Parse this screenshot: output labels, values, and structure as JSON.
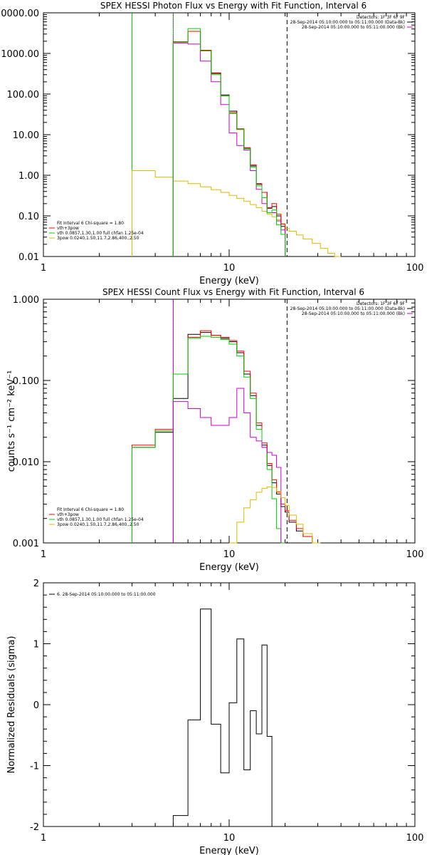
{
  "figure": {
    "colors": {
      "background": "#ffffff",
      "axis": "#000000",
      "total": "#ff0000",
      "data": "#000000",
      "bk": "#cc00cc",
      "vth": "#00cc00",
      "powerlaw": "#ddbb00"
    }
  },
  "chart_data": [
    {
      "id": "photon",
      "type": "line",
      "title": "SPEX HESSI Photon Flux vs Energy with Fit Function, Interval 6",
      "xlabel": "Energy (keV)",
      "ylabel": "",
      "xscale": "log",
      "yscale": "log",
      "xlim": [
        1,
        100
      ],
      "ylim": [
        0.01,
        10000
      ],
      "xticks": [
        {
          "v": 1,
          "label": "1"
        },
        {
          "v": 10,
          "label": "10"
        },
        {
          "v": 100,
          "label": "100"
        }
      ],
      "yticks": [
        {
          "v": 0.01,
          "label": "0.01"
        },
        {
          "v": 0.1,
          "label": "0.10"
        },
        {
          "v": 1,
          "label": "1.00"
        },
        {
          "v": 10,
          "label": "10.00"
        },
        {
          "v": 100,
          "label": "100.00"
        },
        {
          "v": 1000,
          "label": "1000.00"
        },
        {
          "v": 10000,
          "label": "10000.00"
        }
      ],
      "vlines": [
        {
          "x": 3,
          "style": "solid",
          "color": "#00cc00"
        },
        {
          "x": 5,
          "style": "solid",
          "color": "#00cc00"
        },
        {
          "x": 5,
          "style": "dotted",
          "color": "#cc00cc"
        },
        {
          "x": 20.5,
          "style": "dashed",
          "color": "#000000"
        }
      ],
      "header": [
        "Detectors: 1F 3F 6F 9F",
        "28-Sep-2014 05:10:00.000 to 05:11:00.000 (Data-Bk)",
        "28-Sep-2014 05:10:00.000 to 05:11:00.000 (Bk)"
      ],
      "header_colors": [
        "#000000",
        "#000000",
        "#cc00cc"
      ],
      "legend": [
        {
          "text": "Fit Interval 6   Chi-square = 1.80",
          "color": ""
        },
        {
          "text": "vth+3pow",
          "color": "#ff0000"
        },
        {
          "text": "vth 0.0857,1.30,1.00  full chfan 1.25e-04",
          "color": "#00cc00"
        },
        {
          "text": "3pow 0.0240,1.50,11.7,2.86,400.,2.50",
          "color": "#ddbb00"
        }
      ],
      "edges": [
        5,
        6,
        7,
        8,
        9,
        10,
        11,
        12,
        13,
        14,
        15,
        16,
        17,
        18,
        19,
        20
      ],
      "series": [
        {
          "key": "data",
          "color": "#000000",
          "values": [
            1950,
            3500,
            1200,
            330,
            95,
            38,
            13.5,
            4.6,
            1.7,
            0.6,
            0.38,
            0.155,
            0.17,
            0.1,
            0.055
          ]
        },
        {
          "key": "total",
          "color": "#ff0000",
          "values": [
            1950,
            3500,
            1200,
            320,
            90,
            35,
            14,
            4.8,
            1.8,
            0.62,
            0.38,
            0.16,
            0.2,
            0.11,
            0.062
          ]
        },
        {
          "key": "bk",
          "color": "#cc00cc",
          "values": [
            1800,
            1700,
            650,
            200,
            55,
            11,
            5.4,
            4.2,
            1.3,
            0.45,
            0.2,
            0.12,
            0.12,
            0.075,
            0.045
          ]
        },
        {
          "key": "vth",
          "color": "#00cc00",
          "values": [
            1900,
            4100,
            1150,
            300,
            90,
            33,
            13.5,
            4.5,
            1.6,
            0.55,
            0.28,
            0.12,
            0.14,
            0.06,
            0.035
          ]
        }
      ],
      "pow_edges": [
        3,
        4,
        5,
        6,
        7,
        8,
        9,
        10,
        11,
        12,
        13,
        14,
        15,
        16,
        17,
        18,
        19,
        20,
        21,
        23,
        25,
        28,
        31,
        34,
        37,
        40
      ],
      "pow_values": [
        1.3,
        0.9,
        0.72,
        0.62,
        0.52,
        0.44,
        0.38,
        0.32,
        0.27,
        0.23,
        0.19,
        0.16,
        0.13,
        0.11,
        0.095,
        0.08,
        0.065,
        0.05,
        0.042,
        0.034,
        0.027,
        0.021,
        0.016,
        0.012,
        0.01
      ]
    },
    {
      "id": "count",
      "type": "line",
      "title": "SPEX HESSI Count Flux vs Energy with Fit Function, Interval 6",
      "xlabel": "Energy (keV)",
      "ylabel": "counts s⁻¹ cm⁻² keV⁻¹",
      "xscale": "log",
      "yscale": "log",
      "xlim": [
        1,
        100
      ],
      "ylim": [
        0.001,
        1
      ],
      "xticks": [
        {
          "v": 1,
          "label": "1"
        },
        {
          "v": 10,
          "label": "10"
        },
        {
          "v": 100,
          "label": "100"
        }
      ],
      "yticks": [
        {
          "v": 0.001,
          "label": "0.001"
        },
        {
          "v": 0.01,
          "label": "0.010"
        },
        {
          "v": 0.1,
          "label": "0.100"
        },
        {
          "v": 1,
          "label": "1.000"
        }
      ],
      "vlines": [
        {
          "x": 5,
          "style": "dotted",
          "color": "#000000"
        },
        {
          "x": 5,
          "style": "solid",
          "color": "#cc00cc"
        },
        {
          "x": 20.5,
          "style": "dashed",
          "color": "#000000"
        }
      ],
      "header": [
        "Detectors: 1F 3F 6F 9F",
        "28-Sep-2014 05:10:00.000 to 05:11:00.000 (Data-Bk)",
        "28-Sep-2014 05:10:00.000 to 05:11:00.000 (Bk)"
      ],
      "header_colors": [
        "#000000",
        "#000000",
        "#cc00cc"
      ],
      "legend": [
        {
          "text": "Fit Interval 6   Chi-square = 1.80",
          "color": ""
        },
        {
          "text": "vth+3pow",
          "color": "#ff0000"
        },
        {
          "text": "vth 0.0857,1.30,1.00  full chfan 1.25e-04",
          "color": "#00cc00"
        },
        {
          "text": "3pow 0.0240,1.50,11.7,2.86,400.,2.50",
          "color": "#ddbb00"
        }
      ],
      "edges": [
        3,
        4,
        5,
        6,
        7,
        8,
        9,
        10,
        11,
        12,
        13,
        14,
        15,
        16,
        17,
        18,
        19,
        20,
        21,
        23,
        25,
        28,
        31,
        34,
        37,
        40
      ],
      "series": [
        {
          "key": "data",
          "color": "#000000",
          "values": [
            0.015,
            0.023,
            0.06,
            0.37,
            0.39,
            0.36,
            0.33,
            0.3,
            0.22,
            0.12,
            0.065,
            0.028,
            0.016,
            0.009,
            0.0055,
            0.004,
            0.0028,
            0.0024,
            0.0018,
            0.0014,
            0.0012,
            0.001,
            null,
            null,
            null
          ]
        },
        {
          "key": "total",
          "color": "#ff0000",
          "values": [
            0.016,
            0.025,
            0.12,
            0.34,
            0.41,
            0.36,
            0.34,
            0.31,
            0.23,
            0.13,
            0.07,
            0.03,
            0.017,
            0.0095,
            0.006,
            0.0042,
            0.003,
            0.0025,
            0.0019,
            0.0015,
            0.0012,
            0.001,
            null,
            null,
            null
          ]
        },
        {
          "key": "vth",
          "color": "#00cc00",
          "values": [
            0.015,
            0.024,
            0.12,
            0.33,
            0.35,
            0.34,
            0.32,
            0.28,
            0.2,
            0.11,
            0.06,
            0.025,
            0.015,
            0.008,
            0.0035,
            0.0015,
            0.001,
            null,
            null,
            null,
            null,
            null,
            null,
            null,
            null
          ]
        },
        {
          "key": "bk",
          "color": "#cc00cc",
          "values": [
            null,
            null,
            0.055,
            0.045,
            0.035,
            0.028,
            0.028,
            0.035,
            0.08,
            0.04,
            0.02,
            0.018,
            0.015,
            0.013,
            0.012,
            0.0085,
            null,
            null,
            null,
            null,
            null,
            null,
            null,
            null,
            null
          ]
        },
        {
          "key": "pow",
          "color": "#ddbb00",
          "values": [
            null,
            null,
            null,
            null,
            null,
            null,
            null,
            0.001,
            0.0018,
            0.0027,
            0.0034,
            0.0042,
            0.0047,
            0.0049,
            0.0048,
            0.0043,
            0.0036,
            0.0029,
            0.0022,
            0.0017,
            0.0013,
            0.001,
            null,
            null,
            null
          ]
        }
      ]
    },
    {
      "id": "residuals",
      "type": "line",
      "title": "",
      "xlabel": "Energy (keV)",
      "ylabel": "Normalized Residuals (sigma)",
      "xscale": "log",
      "yscale": "linear",
      "xlim": [
        1,
        100
      ],
      "ylim": [
        -2,
        2
      ],
      "xticks": [
        {
          "v": 1,
          "label": "1"
        },
        {
          "v": 10,
          "label": "10"
        },
        {
          "v": 100,
          "label": "100"
        }
      ],
      "yticks": [
        {
          "v": -2,
          "label": "-2"
        },
        {
          "v": -1,
          "label": "-1"
        },
        {
          "v": 0,
          "label": "0"
        },
        {
          "v": 1,
          "label": "1"
        },
        {
          "v": 2,
          "label": "2"
        }
      ],
      "legend": [
        {
          "text": "6. 28-Sep-2014 05:10:00.000 to 05:11:00.000",
          "color": "#000000"
        }
      ],
      "edges": [
        5,
        6,
        7,
        8,
        9,
        10,
        11,
        12,
        13,
        14,
        15,
        16,
        17,
        18,
        19,
        20
      ],
      "series": [
        {
          "key": "resid",
          "color": "#000000",
          "values": [
            -1.82,
            -0.25,
            1.57,
            -0.32,
            -1.12,
            0.03,
            1.08,
            -1.07,
            -0.1,
            -0.48,
            0.98,
            -0.52,
            -2.0,
            -2.0,
            -2.0
          ]
        }
      ]
    }
  ]
}
